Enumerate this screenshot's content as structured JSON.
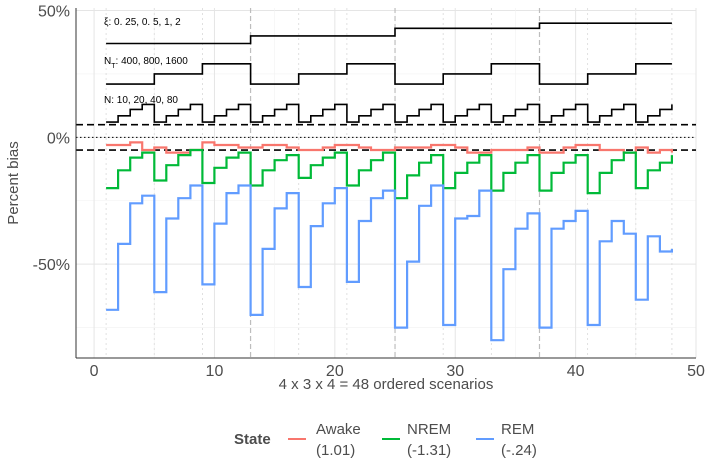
{
  "chart_data": {
    "type": "line",
    "xlabel": "4 x 3 x 4 = 48 ordered scenarios",
    "ylabel": "Percent bias",
    "xlim": [
      -1.5,
      50
    ],
    "ylim": [
      -87,
      51
    ],
    "x_ticks": [
      0,
      10,
      20,
      30,
      40,
      50
    ],
    "x_tick_labels": [
      "0",
      "10",
      "20",
      "30",
      "40",
      "50"
    ],
    "y_ticks": [
      50,
      0,
      -50
    ],
    "y_tick_labels": [
      "50%",
      "0%",
      "-50%"
    ],
    "grid": true,
    "reference_lines": {
      "dashed": [
        5,
        -5
      ],
      "dotted": [
        0
      ]
    },
    "nested_labels": [
      {
        "label": "ξ: 0. 25, 0. 5, 1, 2",
        "levels": [
          37,
          40,
          43,
          45
        ]
      },
      {
        "label_main": "N",
        "label_sub": "T",
        "label_rest": ": 400, 800, 1600",
        "levels": [
          21,
          25,
          29
        ]
      },
      {
        "label": "N: 10, 20, 40, 80",
        "levels": [
          6,
          8.5,
          11,
          13
        ]
      }
    ],
    "legend": {
      "title": "State",
      "position": "bottom"
    },
    "x": [
      1,
      2,
      3,
      4,
      5,
      6,
      7,
      8,
      9,
      10,
      11,
      12,
      13,
      14,
      15,
      16,
      17,
      18,
      19,
      20,
      21,
      22,
      23,
      24,
      25,
      26,
      27,
      28,
      29,
      30,
      31,
      32,
      33,
      34,
      35,
      36,
      37,
      38,
      39,
      40,
      41,
      42,
      43,
      44,
      45,
      46,
      47,
      48
    ],
    "series": [
      {
        "name": "Awake",
        "label": "Awake",
        "value_label": "(1.01)",
        "color": "#F8766D",
        "values": [
          -3,
          -3,
          -2,
          -5,
          -4,
          -6,
          -6,
          -5,
          -2,
          -3,
          -3,
          -4,
          -4,
          -3,
          -3,
          -4,
          -5,
          -5,
          -4,
          -3,
          -3,
          -4,
          -5,
          -5,
          -4,
          -4,
          -4,
          -3,
          -3,
          -4,
          -6,
          -6,
          -5,
          -5,
          -5,
          -4,
          -6,
          -6,
          -4,
          -3,
          -3,
          -5,
          -5,
          -6,
          -4,
          -6,
          -5,
          -6
        ]
      },
      {
        "name": "NREM",
        "label": "NREM",
        "value_label": "(-1.31)",
        "color": "#00BA38",
        "values": [
          -20,
          -13,
          -8,
          -6,
          -17,
          -11,
          -7,
          -5,
          -18,
          -12,
          -8,
          -6,
          -19,
          -13,
          -9,
          -7,
          -16,
          -11,
          -8,
          -6,
          -19,
          -13,
          -9,
          -6,
          -24,
          -15,
          -10,
          -7,
          -20,
          -14,
          -10,
          -7,
          -21,
          -14,
          -10,
          -7,
          -21,
          -14,
          -10,
          -7,
          -22,
          -14,
          -9,
          -6,
          -20,
          -13,
          -10,
          -7
        ]
      },
      {
        "name": "REM",
        "label": "REM",
        "value_label": "(-.24)",
        "color": "#619CFF",
        "values": [
          -68,
          -42,
          -26,
          -23,
          -61,
          -32,
          -24,
          -19,
          -58,
          -34,
          -22,
          -19,
          -70,
          -44,
          -28,
          -22,
          -59,
          -35,
          -26,
          -20,
          -57,
          -33,
          -24,
          -21,
          -75,
          -49,
          -27,
          -19,
          -74,
          -32,
          -31,
          -21,
          -80,
          -52,
          -36,
          -30,
          -75,
          -36,
          -33,
          -29,
          -74,
          -41,
          -33,
          -38,
          -64,
          -39,
          -45,
          -44
        ]
      }
    ]
  }
}
